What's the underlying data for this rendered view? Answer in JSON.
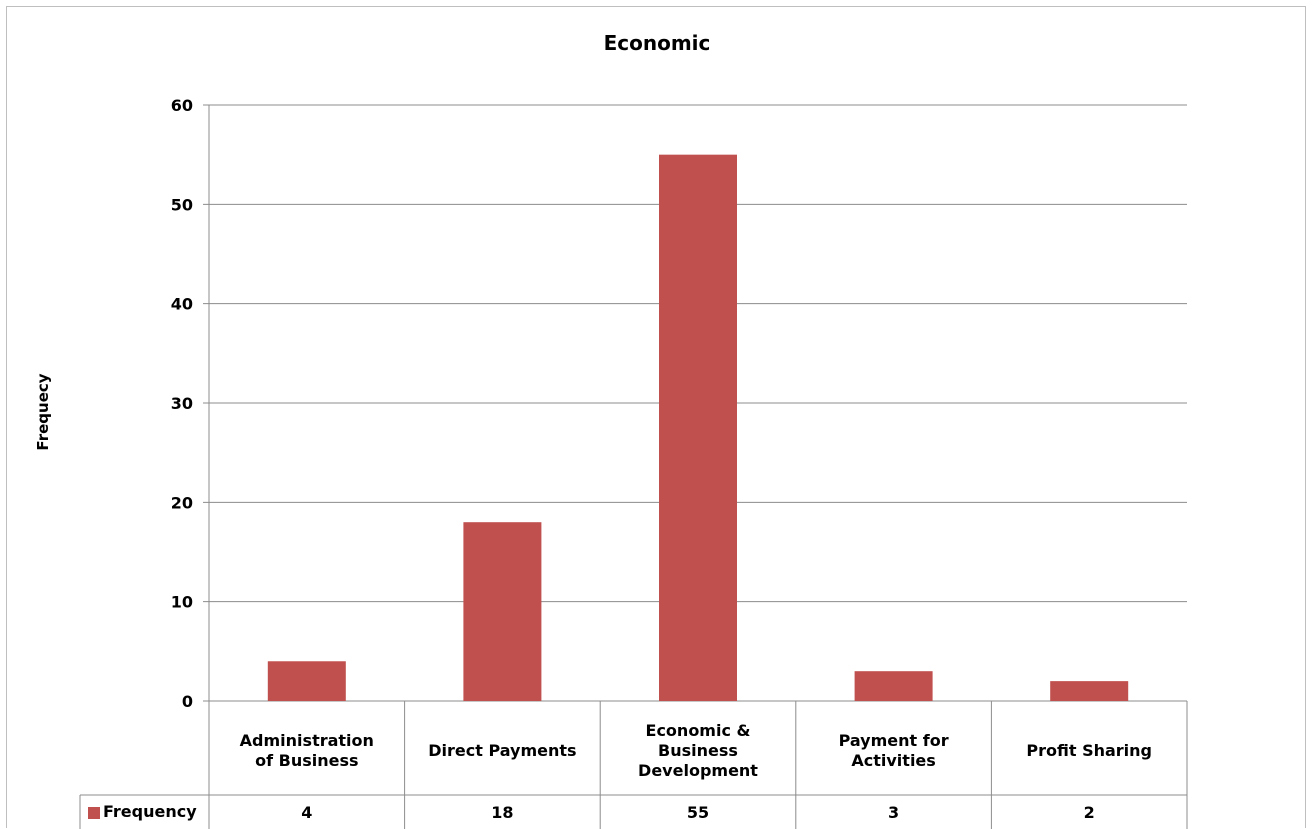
{
  "chart_data": {
    "type": "bar",
    "title": "Economic",
    "ylabel": "Frequecy",
    "xlabel": "",
    "categories": [
      [
        "Administration",
        "of Business"
      ],
      [
        "Direct Payments"
      ],
      [
        "Economic &",
        "Business",
        "Development"
      ],
      [
        "Payment for",
        "Activities"
      ],
      [
        "Profit Sharing"
      ]
    ],
    "series": [
      {
        "name": "Frequency",
        "values": [
          4,
          18,
          55,
          3,
          2
        ],
        "color": "#c0504d"
      }
    ],
    "ylim": [
      0,
      60
    ],
    "yticks": [
      0,
      10,
      20,
      30,
      40,
      50,
      60
    ],
    "grid": true,
    "legend": "data-table-left"
  }
}
